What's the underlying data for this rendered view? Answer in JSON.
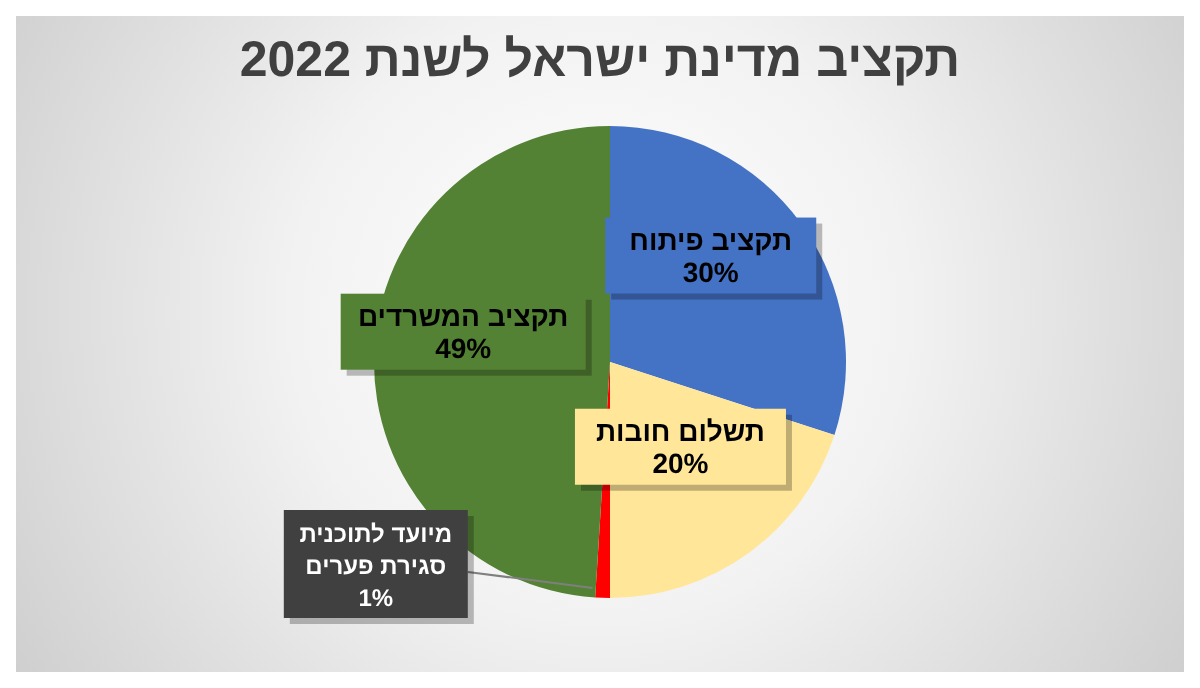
{
  "chart_data": {
    "type": "pie",
    "title": "תקציב מדינת ישראל לשנת 2022",
    "categories": [
      "תקציב פיתוח",
      "תשלום חובות",
      "מיועד לתוכנית סגירת פערים",
      "תקציב המשרדים"
    ],
    "values": [
      30,
      20,
      1,
      49
    ],
    "value_labels": [
      "30%",
      "20%",
      "1%",
      "49%"
    ],
    "colors": [
      "#4472c4",
      "#ffe699",
      "#ff0000",
      "#548235"
    ],
    "legend": false
  }
}
